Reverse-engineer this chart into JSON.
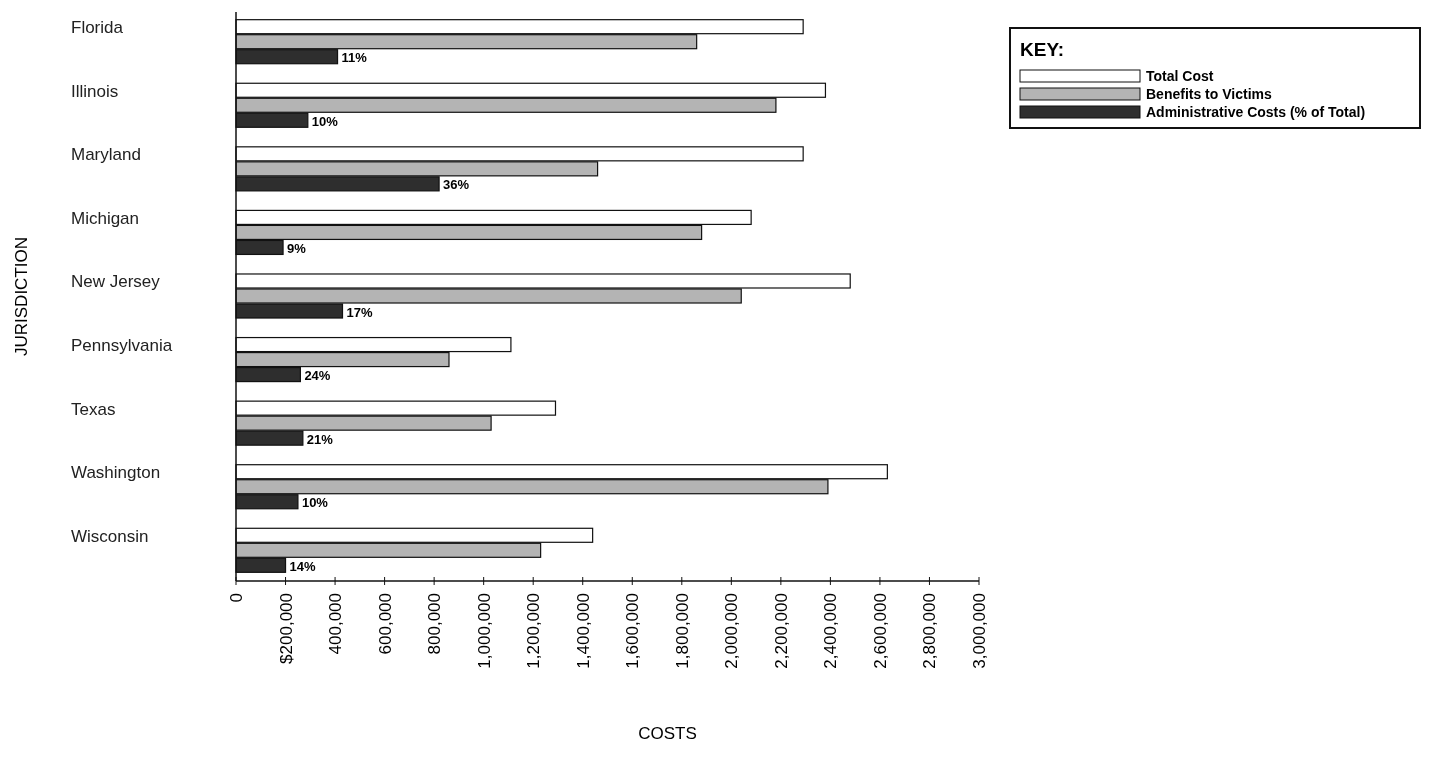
{
  "chart_data": {
    "type": "bar",
    "orientation": "horizontal",
    "xlabel": "COSTS",
    "ylabel": "JURISDICTION",
    "legend_title": "KEY:",
    "legend": "top right",
    "categories": [
      "Florida",
      "Illinois",
      "Maryland",
      "Michigan",
      "New Jersey",
      "Pennsylvania",
      "Texas",
      "Washington",
      "Wisconsin"
    ],
    "series": [
      {
        "name": "Total Cost",
        "color": "#ffffff",
        "values": [
          2290000,
          2380000,
          2290000,
          2080000,
          2480000,
          1110000,
          1290000,
          2630000,
          1440000
        ]
      },
      {
        "name": "Benefits to Victims",
        "color": "#b4b4b4",
        "values": [
          1860000,
          2180000,
          1460000,
          1880000,
          2040000,
          860000,
          1030000,
          2390000,
          1230000
        ]
      },
      {
        "name": "Administrative Costs (% of Total)",
        "color": "#2e2e2e",
        "values": [
          410000,
          290000,
          820000,
          190000,
          430000,
          260000,
          270000,
          250000,
          200000
        ]
      }
    ],
    "annotations": [
      {
        "text": "11%",
        "x": 410000,
        "y": "Florida"
      },
      {
        "text": "10%",
        "x": 290000,
        "y": "Illinois"
      },
      {
        "text": "36%",
        "x": 820000,
        "y": "Maryland"
      },
      {
        "text": "9%",
        "x": 190000,
        "y": "Michigan"
      },
      {
        "text": "17%",
        "x": 430000,
        "y": "New Jersey"
      },
      {
        "text": "24%",
        "x": 260000,
        "y": "Pennsylvania"
      },
      {
        "text": "21%",
        "x": 270000,
        "y": "Texas"
      },
      {
        "text": "10%",
        "x": 250000,
        "y": "Washington"
      },
      {
        "text": "14%",
        "x": 200000,
        "y": "Wisconsin"
      }
    ],
    "xlim": [
      0,
      3000000
    ],
    "xticks": [
      0,
      {
        "value": 200000,
        "label": "$200,000"
      },
      {
        "value": 400000,
        "label": "400,000"
      },
      {
        "value": 600000,
        "label": "600,000"
      },
      {
        "value": 800000,
        "label": "800,000"
      },
      {
        "value": 1000000,
        "label": "1,000,000"
      },
      {
        "value": 1200000,
        "label": "1,200,000"
      },
      {
        "value": 1400000,
        "label": "1,400,000"
      },
      {
        "value": 1600000,
        "label": "1,600,000"
      },
      {
        "value": 1800000,
        "label": "1,800,000"
      },
      {
        "value": 2000000,
        "label": "2,000,000"
      },
      {
        "value": 2200000,
        "label": "2,200,000"
      },
      {
        "value": 2400000,
        "label": "2,400,000"
      },
      {
        "value": 2600000,
        "label": "2,600,000"
      },
      {
        "value": 2800000,
        "label": "2,800,000"
      },
      {
        "value": 3000000,
        "label": "3,000,000"
      }
    ],
    "grid": false
  }
}
